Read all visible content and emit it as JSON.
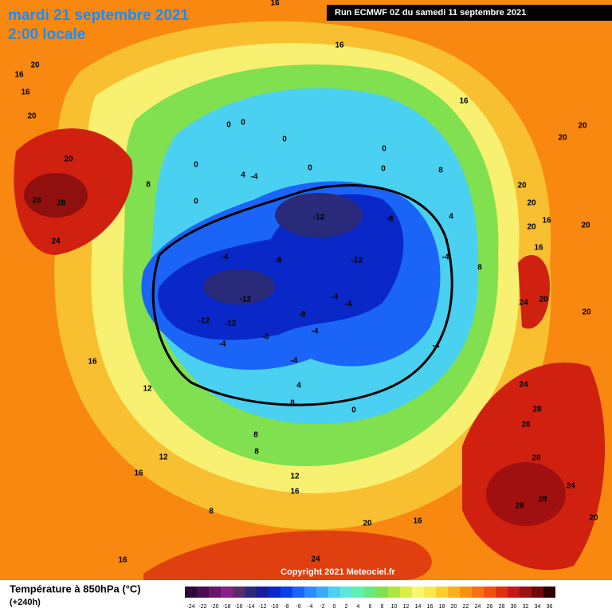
{
  "header": {
    "title": "mardi 21 septembre 2021",
    "subtitle": "2:00 locale",
    "run": "Run ECMWF 0Z du samedi 11 septembre 2021"
  },
  "footer": {
    "copyright": "Copyright 2021 Meteociel.fr",
    "legend_title": "Température à 850hPa (°C)",
    "lead": "(+240h)"
  },
  "scale": {
    "values": [
      -24,
      -22,
      -20,
      -18,
      -16,
      -14,
      -12,
      -10,
      -8,
      -6,
      -4,
      -2,
      0,
      2,
      4,
      6,
      8,
      10,
      12,
      14,
      16,
      18,
      20,
      22,
      24,
      26,
      28,
      30,
      32,
      34,
      36
    ],
    "colors": [
      "#2e0838",
      "#4a0c52",
      "#6a1470",
      "#8a2088",
      "#5a2a6a",
      "#2a2a7a",
      "#1a1aa0",
      "#0a28c8",
      "#0a40e8",
      "#1a64f8",
      "#2a8cff",
      "#3aaaf8",
      "#4ad0f0",
      "#5ae8d8",
      "#60f0b0",
      "#68e880",
      "#80e050",
      "#a8e840",
      "#d8f040",
      "#f8f870",
      "#f8e850",
      "#f8d030",
      "#f8b020",
      "#f89010",
      "#f87010",
      "#f05010",
      "#e03010",
      "#c81818",
      "#a01010",
      "#700808",
      "#300000"
    ]
  },
  "contour_labels": [
    "20",
    "16",
    "16",
    "20",
    "16",
    "16",
    "16",
    "20",
    "20",
    "8",
    "20",
    "20",
    "4",
    "16",
    "20",
    "20",
    "16",
    "8",
    "20",
    "24",
    "20",
    "24",
    "28",
    "28",
    "28",
    "24",
    "28",
    "28",
    "20",
    "20",
    "16",
    "24",
    "16",
    "8",
    "16",
    "12",
    "12",
    "16",
    "8",
    "8",
    "8",
    "4",
    "16",
    "12",
    "24",
    "28",
    "28",
    "20",
    "8",
    "0",
    "0",
    "0",
    "0",
    "4",
    "0",
    "0",
    "0",
    "0",
    "-4",
    "-12",
    "-8",
    "-4",
    "-12",
    "-8",
    "-4",
    "-12",
    "-12",
    "-12",
    "-8",
    "-4",
    "-4",
    "-8",
    "-4",
    "-4",
    "-4",
    "-4",
    "0"
  ]
}
